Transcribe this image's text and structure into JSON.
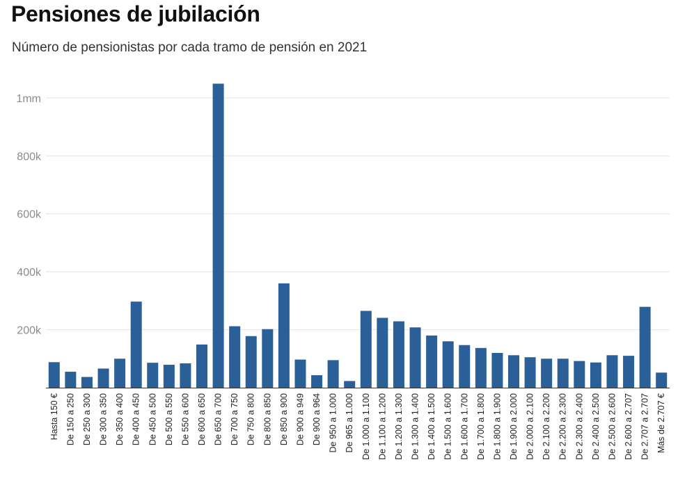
{
  "title": "Pensiones de jubilación",
  "subtitle": "Número de pensionistas por cada tramo de pensión en 2021",
  "colors": {
    "bar": "#2b5f98",
    "grid": "#e2e2e2",
    "axis": "#333333"
  },
  "chart_data": {
    "type": "bar",
    "title": "Pensiones de jubilación",
    "subtitle": "Número de pensionistas por cada tramo de pensión en 2021",
    "xlabel": "",
    "ylabel": "",
    "ylim": [
      0,
      1050000
    ],
    "grid": true,
    "yticks": [
      {
        "value": 200000,
        "label": "200k"
      },
      {
        "value": 400000,
        "label": "400k"
      },
      {
        "value": 600000,
        "label": "600k"
      },
      {
        "value": 800000,
        "label": "800k"
      },
      {
        "value": 1000000,
        "label": "1mm"
      }
    ],
    "categories": [
      "Hasta 150 €",
      "De 150 a 250",
      "De 250 a 300",
      "De 300 a 350",
      "De 350 a 400",
      "De 400 a 450",
      "De 450 a 500",
      "De 500 a 550",
      "De 550 a 600",
      "De 600 a 650",
      "De 650 a 700",
      "De 700 a 750",
      "De 750 a 800",
      "De 800 a 850",
      "De 850 a 900",
      "De 900 a 949",
      "De 900 a 964",
      "De 950 a 1.000",
      "De 965 a 1.000",
      "De 1.000 a 1.100",
      "De 1.100 a 1.200",
      "De 1.200 a 1.300",
      "De 1.300 a 1.400",
      "De 1.400 a 1.500",
      "De 1.500 a 1.600",
      "De 1.600 a 1.700",
      "De 1.700 a 1.800",
      "De 1.800 a 1.900",
      "De 1.900 a 2.000",
      "De 2.000 a 2.100",
      "De 2.100 a 2.200",
      "De 2.200 a 2.300",
      "De 2.300 a 2.400",
      "De 2.400 a 2.500",
      "De 2.500 a 2.600",
      "De 2.600 a 2.707",
      "De 2.707 a 2.707",
      "Más de 2.707 €"
    ],
    "values": [
      88000,
      55000,
      37000,
      66000,
      100000,
      297000,
      86000,
      79000,
      84000,
      149000,
      1049000,
      212000,
      178000,
      202000,
      360000,
      97000,
      43000,
      95000,
      23000,
      265000,
      241000,
      229000,
      208000,
      180000,
      160000,
      147000,
      137000,
      120000,
      112000,
      105000,
      100000,
      100000,
      92000,
      87000,
      112000,
      110000,
      279000,
      52000
    ]
  }
}
